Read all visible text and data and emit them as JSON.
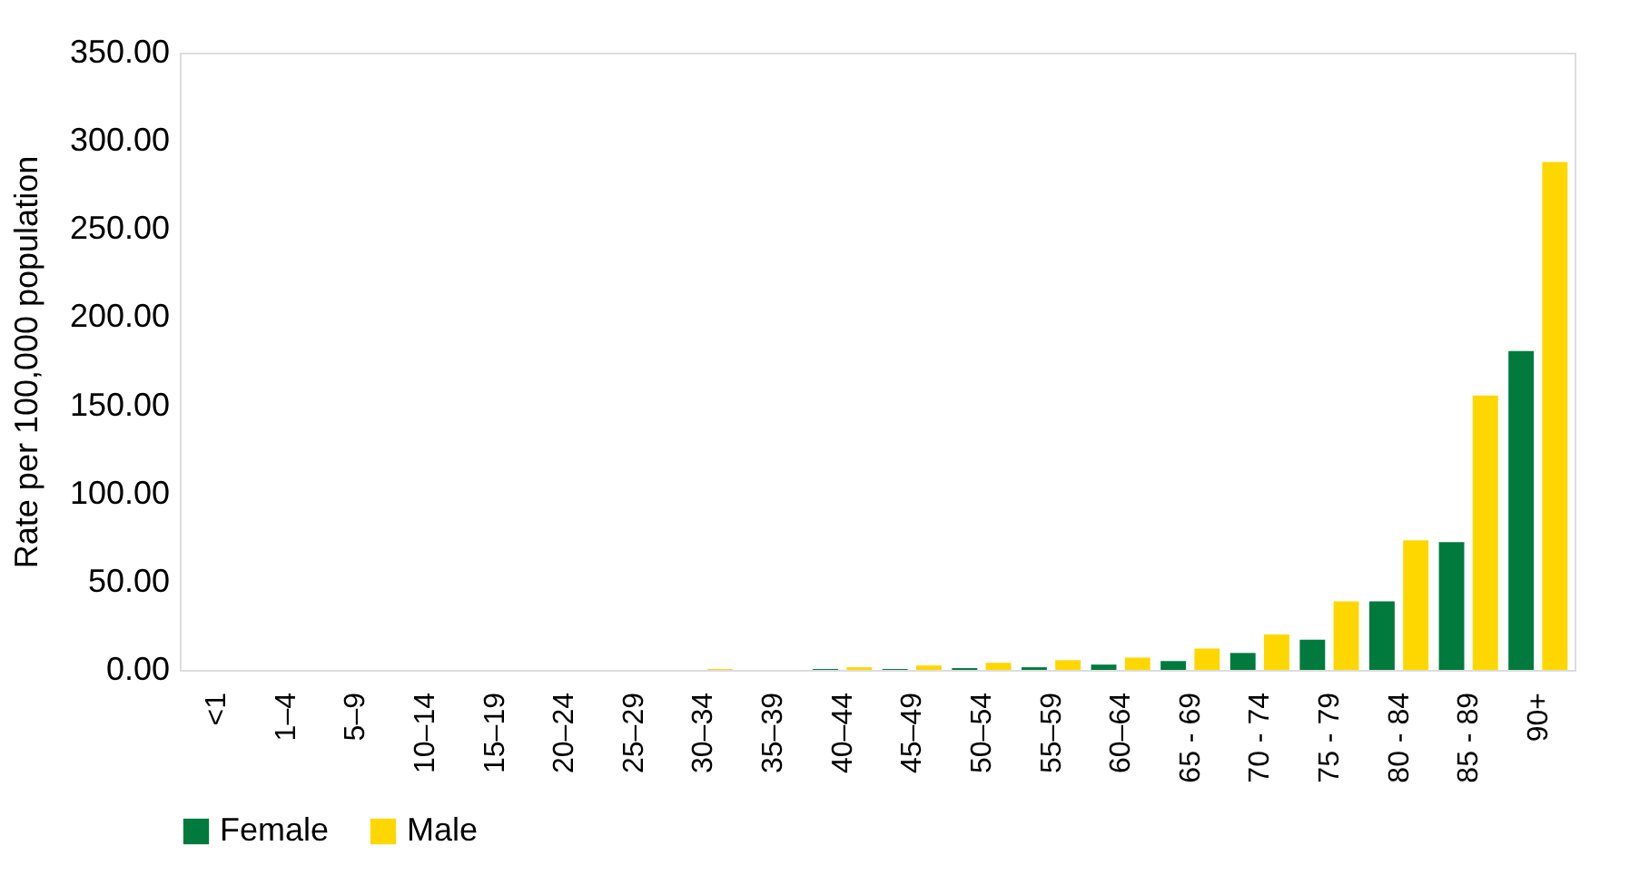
{
  "chart_data": {
    "type": "bar",
    "ylabel": "Rate per 100,000 population",
    "categories": [
      "<1",
      "1–4",
      "5–9",
      "10–14",
      "15–19",
      "20–24",
      "25–29",
      "30–34",
      "35–39",
      "40–44",
      "45–49",
      "50–54",
      "55–59",
      "60–64",
      "65 - 69",
      "70 - 74",
      "75 - 79",
      "80 - 84",
      "85 - 89",
      "90+"
    ],
    "series": [
      {
        "name": "Female",
        "color": "#007a3d",
        "values": [
          0,
          0,
          0,
          0,
          0,
          0,
          0,
          0,
          0,
          0.5,
          0.5,
          1.0,
          1.5,
          3.0,
          5.0,
          9.6,
          17.1,
          38.8,
          72.5,
          180.8
        ]
      },
      {
        "name": "Male",
        "color": "#ffd700",
        "values": [
          0,
          0,
          0,
          0,
          0,
          0,
          0,
          0.5,
          0,
          1.5,
          2.5,
          4.0,
          5.5,
          7.0,
          12.1,
          20.1,
          38.8,
          73.5,
          155.6,
          288.0
        ]
      }
    ],
    "ylim": [
      0,
      350
    ],
    "yticks": [
      {
        "value": 0,
        "label": "0.00"
      },
      {
        "value": 50,
        "label": "50.00"
      },
      {
        "value": 100,
        "label": "100.00"
      },
      {
        "value": 150,
        "label": "150.00"
      },
      {
        "value": 200,
        "label": "200.00"
      },
      {
        "value": 250,
        "label": "250.00"
      },
      {
        "value": 300,
        "label": "300.00"
      },
      {
        "value": 350,
        "label": "350.00"
      }
    ],
    "grid": false,
    "legend": "bottom"
  }
}
